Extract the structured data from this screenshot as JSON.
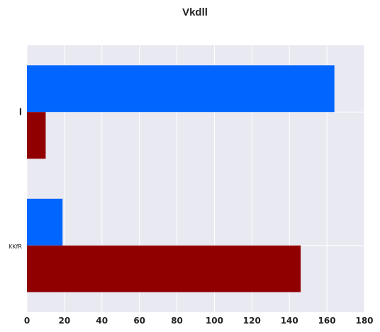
{
  "chart_data": {
    "type": "bar",
    "orientation": "horizontal",
    "title": "Vkdll",
    "categories": [
      "l",
      "KKfR"
    ],
    "series": [
      {
        "values": [
          164,
          19
        ],
        "color": "#0066ff"
      },
      {
        "values": [
          10,
          146
        ],
        "color": "#910000"
      }
    ],
    "xlim": [
      0,
      180
    ],
    "xticks": [
      0,
      20,
      40,
      60,
      80,
      100,
      120,
      140,
      160,
      180
    ],
    "xlabel": "",
    "ylabel": "",
    "grid": true,
    "legend": "none",
    "background_color": "#e9e9f2",
    "grid_color": "#ffffff"
  }
}
